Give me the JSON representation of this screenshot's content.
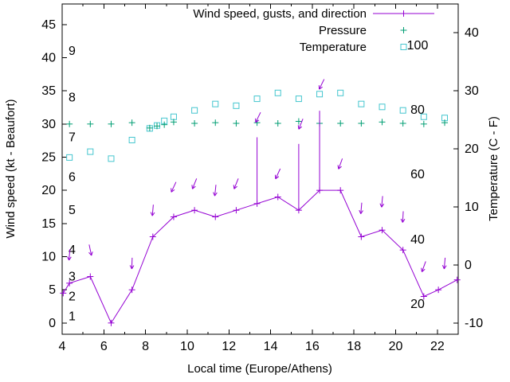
{
  "chart_data": {
    "type": "line",
    "title": "",
    "xlabel": "Local time (Europe/Athens)",
    "ylabel_left": "Wind speed (kt - Beaufort)",
    "ylabel_right": "Temperature (C - F)",
    "background": "#ffffff",
    "axis_color": "#000000",
    "legend_position": "top-right-inside",
    "axes": {
      "x": {
        "label": "Local time (Europe/Athens)",
        "range": [
          4,
          23
        ],
        "major_ticks": [
          4,
          6,
          8,
          10,
          12,
          14,
          16,
          18,
          20,
          22
        ],
        "minor_ticks": [
          5,
          7,
          9,
          11,
          13,
          15,
          17,
          19,
          21,
          23
        ]
      },
      "y_left": {
        "label": "Wind speed (kt - Beaufort)",
        "range": [
          -1.7,
          48.1
        ],
        "ticks": [
          0,
          5,
          10,
          15,
          20,
          25,
          30,
          35,
          40,
          45
        ]
      },
      "y_right": {
        "label": "Temperature (C - F)",
        "range": [
          -11.9,
          44.9
        ],
        "ticks": [
          -10,
          0,
          10,
          20,
          30,
          40
        ]
      }
    },
    "beaufort_labels": [
      {
        "label": "1",
        "kt": 1
      },
      {
        "label": "2",
        "kt": 4
      },
      {
        "label": "3",
        "kt": 7
      },
      {
        "label": "4",
        "kt": 11
      },
      {
        "label": "5",
        "kt": 17
      },
      {
        "label": "6",
        "kt": 22
      },
      {
        "label": "7",
        "kt": 28
      },
      {
        "label": "8",
        "kt": 34
      },
      {
        "label": "9",
        "kt": 41
      }
    ],
    "fahrenheit_labels": [
      {
        "label": "20",
        "c": -6.7
      },
      {
        "label": "40",
        "c": 4.4
      },
      {
        "label": "60",
        "c": 15.6
      },
      {
        "label": "80",
        "c": 26.7
      },
      {
        "label": "100",
        "c": 37.8
      }
    ],
    "legend": [
      {
        "label": "Wind speed, gusts, and direction",
        "style": "line-plus",
        "color": "#9400d3"
      },
      {
        "label": "Pressure",
        "style": "plus",
        "color": "#009e73"
      },
      {
        "label": "Temperature",
        "style": "square",
        "color": "#45c6cf"
      }
    ],
    "series": {
      "wind_speed": {
        "name": "Wind speed, gusts, and direction",
        "color": "#9400d3",
        "points": [
          [
            4.05,
            4.5
          ],
          [
            4.35,
            6
          ],
          [
            5.35,
            7
          ],
          [
            6.35,
            0
          ],
          [
            7.35,
            5
          ],
          [
            8.35,
            13
          ],
          [
            9.35,
            16
          ],
          [
            10.35,
            17
          ],
          [
            11.35,
            16
          ],
          [
            12.35,
            17
          ],
          [
            13.35,
            18
          ],
          [
            14.35,
            19
          ],
          [
            15.35,
            17
          ],
          [
            16.35,
            20
          ],
          [
            17.35,
            20
          ],
          [
            18.35,
            13
          ],
          [
            19.35,
            14
          ],
          [
            20.35,
            11
          ],
          [
            21.35,
            4
          ],
          [
            22.05,
            5
          ],
          [
            22.95,
            6.5
          ]
        ]
      },
      "gusts": {
        "color": "#9400d3",
        "impulses": [
          {
            "x": 13.35,
            "from": 18,
            "to": 28
          },
          {
            "x": 15.35,
            "from": 17,
            "to": 27
          },
          {
            "x": 16.35,
            "from": 20,
            "to": 32
          }
        ]
      },
      "wind_direction_arrows": {
        "color": "#9400d3",
        "arrows": [
          {
            "x": 4.35,
            "kt": 10.3,
            "angle": 95
          },
          {
            "x": 5.35,
            "kt": 11.0,
            "angle": 78
          },
          {
            "x": 7.35,
            "kt": 9.0,
            "angle": 92
          },
          {
            "x": 8.35,
            "kt": 17.0,
            "angle": 95
          },
          {
            "x": 9.35,
            "kt": 20.5,
            "angle": 115
          },
          {
            "x": 10.35,
            "kt": 21.0,
            "angle": 112
          },
          {
            "x": 11.35,
            "kt": 20.0,
            "angle": 96
          },
          {
            "x": 12.35,
            "kt": 21.0,
            "angle": 112
          },
          {
            "x": 13.4,
            "kt": 31.0,
            "angle": 116
          },
          {
            "x": 14.35,
            "kt": 22.5,
            "angle": 115
          },
          {
            "x": 15.45,
            "kt": 30.0,
            "angle": 112
          },
          {
            "x": 16.45,
            "kt": 36.0,
            "angle": 116
          },
          {
            "x": 17.35,
            "kt": 24.0,
            "angle": 110
          },
          {
            "x": 18.35,
            "kt": 17.3,
            "angle": 95
          },
          {
            "x": 19.35,
            "kt": 18.3,
            "angle": 95
          },
          {
            "x": 20.35,
            "kt": 16.0,
            "angle": 93
          },
          {
            "x": 21.35,
            "kt": 8.5,
            "angle": 110
          },
          {
            "x": 22.35,
            "kt": 9.0,
            "angle": 95
          }
        ]
      },
      "pressure": {
        "name": "Pressure",
        "color": "#009e73",
        "points": [
          [
            4.35,
            30.0
          ],
          [
            5.35,
            30.0
          ],
          [
            6.35,
            30.0
          ],
          [
            7.35,
            30.2
          ],
          [
            8.2,
            29.4
          ],
          [
            8.55,
            29.7
          ],
          [
            8.9,
            29.9
          ],
          [
            9.35,
            30.3
          ],
          [
            10.35,
            30.1
          ],
          [
            11.35,
            30.2
          ],
          [
            12.35,
            30.1
          ],
          [
            13.35,
            30.2
          ],
          [
            14.35,
            30.1
          ],
          [
            15.35,
            30.4
          ],
          [
            16.35,
            30.1
          ],
          [
            17.35,
            30.1
          ],
          [
            18.35,
            30.1
          ],
          [
            19.35,
            30.3
          ],
          [
            20.35,
            30.1
          ],
          [
            21.35,
            30.0
          ],
          [
            22.35,
            30.2
          ]
        ]
      },
      "temperature": {
        "name": "Temperature",
        "color": "#45c6cf",
        "points_c": [
          [
            4.35,
            18.5
          ],
          [
            5.35,
            19.5
          ],
          [
            6.35,
            18.3
          ],
          [
            7.35,
            21.5
          ],
          [
            8.2,
            23.5
          ],
          [
            8.55,
            24.0
          ],
          [
            8.9,
            24.8
          ],
          [
            9.35,
            25.5
          ],
          [
            10.35,
            26.6
          ],
          [
            11.35,
            27.7
          ],
          [
            12.35,
            27.4
          ],
          [
            13.35,
            28.6
          ],
          [
            14.35,
            29.6
          ],
          [
            15.35,
            28.6
          ],
          [
            16.35,
            29.4
          ],
          [
            17.35,
            29.6
          ],
          [
            18.35,
            27.7
          ],
          [
            19.35,
            27.2
          ],
          [
            20.35,
            26.6
          ],
          [
            21.35,
            25.5
          ],
          [
            22.35,
            25.3
          ]
        ]
      }
    }
  }
}
